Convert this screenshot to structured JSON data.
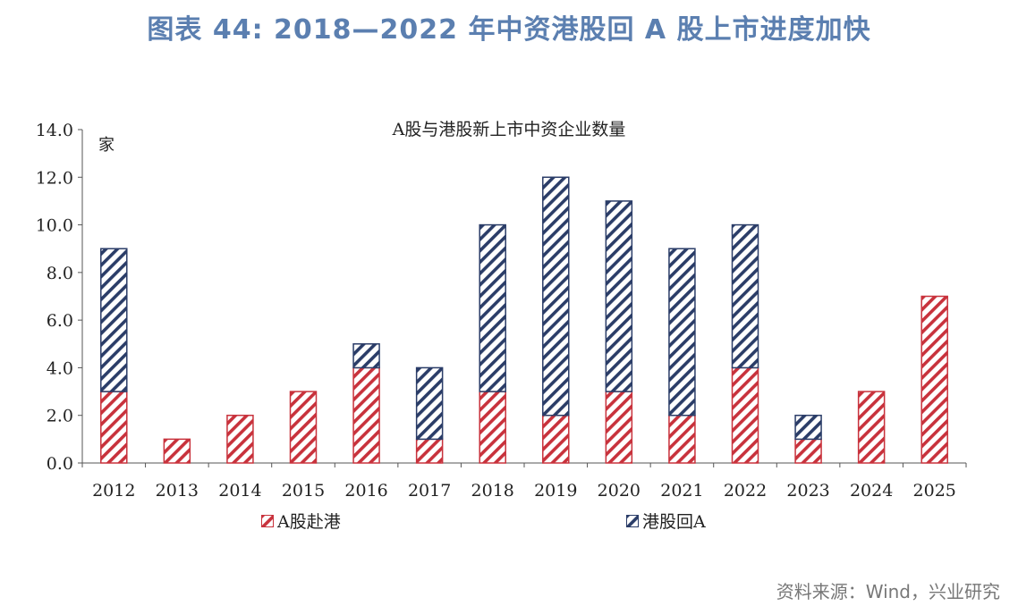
{
  "figure_title": "图表 44: 2018—2022 年中资港股回 A 股上市进度加快",
  "source_note": "资料来源：Wind，兴业研究",
  "colors": {
    "a_to_hk": "#c8323c",
    "hk_to_a": "#2b3d68",
    "title": "#5b7fb0"
  },
  "chart_data": {
    "type": "bar",
    "stacked": true,
    "title": "A股与港股新上市中资企业数量",
    "ylabel": "家",
    "xlabel": "",
    "ylim": [
      0,
      14
    ],
    "yticks": [
      "0.0",
      "2.0",
      "4.0",
      "6.0",
      "8.0",
      "10.0",
      "12.0",
      "14.0"
    ],
    "categories": [
      "2012",
      "2013",
      "2014",
      "2015",
      "2016",
      "2017",
      "2018",
      "2019",
      "2020",
      "2021",
      "2022",
      "2023",
      "2024",
      "2025"
    ],
    "series": [
      {
        "name": "A股赴港",
        "values": [
          3,
          1,
          2,
          3,
          4,
          1,
          3,
          2,
          3,
          2,
          4,
          1,
          3,
          7
        ]
      },
      {
        "name": "港股回A",
        "values": [
          6,
          0,
          0,
          0,
          1,
          3,
          7,
          10,
          8,
          7,
          6,
          1,
          0,
          0
        ]
      }
    ],
    "legend_position": "bottom",
    "grid": false
  }
}
